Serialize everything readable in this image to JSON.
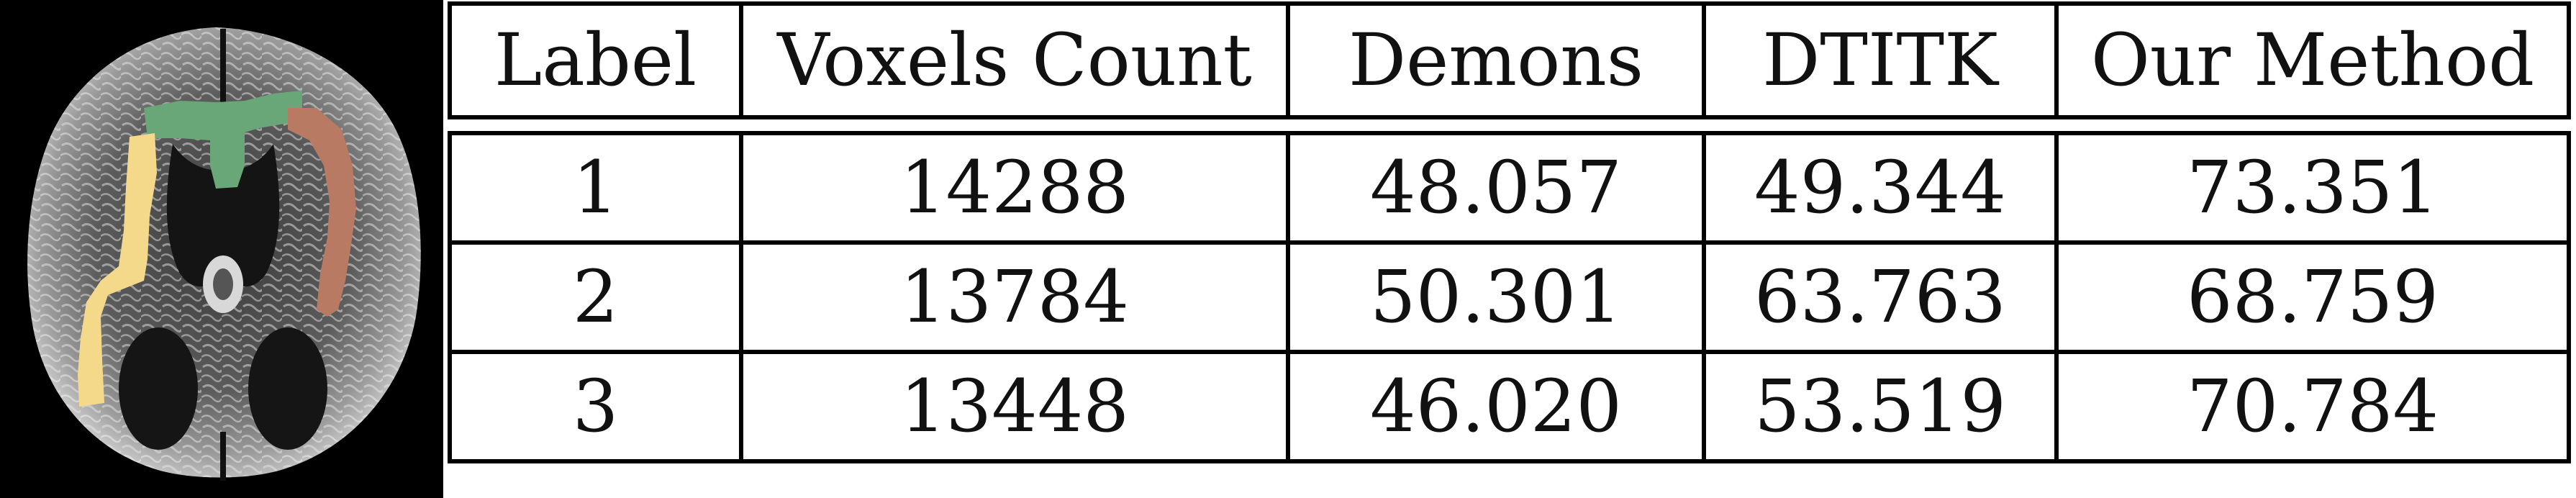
{
  "figure": {
    "brain_image": {
      "background_color": "#000000",
      "regions": [
        {
          "label": "1",
          "color": "#f5d98b"
        },
        {
          "label": "2",
          "color": "#b97a63"
        },
        {
          "label": "3",
          "color": "#6aa778"
        }
      ]
    },
    "table": {
      "headers": [
        "Label",
        "Voxels Count",
        "Demons",
        "DTITK",
        "Our Method"
      ],
      "rows": [
        [
          "1",
          "14288",
          "48.057",
          "49.344",
          "73.351"
        ],
        [
          "2",
          "13784",
          "50.301",
          "63.763",
          "68.759"
        ],
        [
          "3",
          "13448",
          "46.020",
          "53.519",
          "70.784"
        ]
      ]
    }
  },
  "chart_data": {
    "type": "table",
    "columns": [
      "Label",
      "Voxels Count",
      "Demons",
      "DTITK",
      "Our Method"
    ],
    "rows": [
      [
        "1",
        "14288",
        "48.057",
        "49.344",
        "73.351"
      ],
      [
        "2",
        "13784",
        "50.301",
        "63.763",
        "68.759"
      ],
      [
        "3",
        "13448",
        "46.020",
        "53.519",
        "70.784"
      ]
    ]
  }
}
